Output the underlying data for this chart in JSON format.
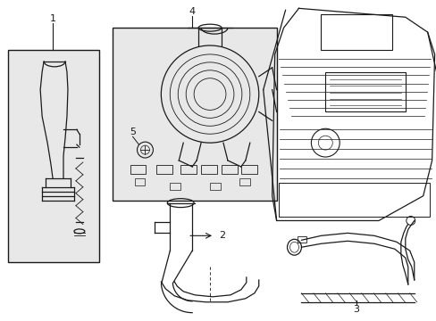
{
  "bg_color": "#ffffff",
  "box_bg": "#e8e8e8",
  "line_color": "#1a1a1a",
  "fig_width": 4.89,
  "fig_height": 3.6,
  "dpi": 100
}
